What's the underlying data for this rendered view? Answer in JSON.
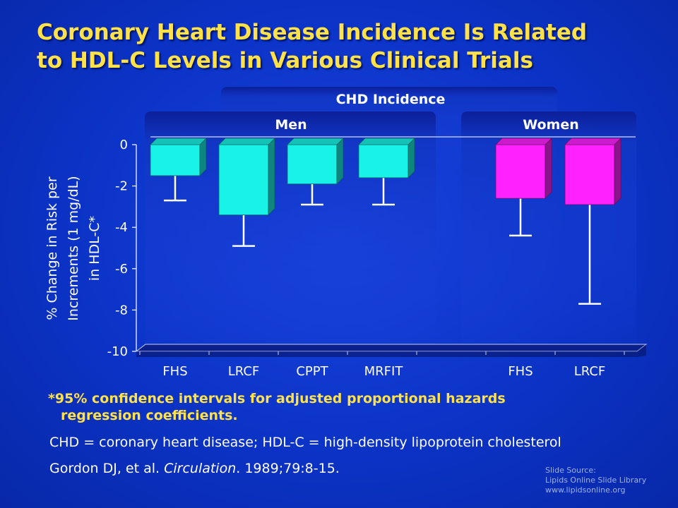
{
  "slide": {
    "title_line1": "Coronary Heart Disease Incidence Is Related",
    "title_line2": "to HDL-C Levels in Various Clinical Trials",
    "footnote_line1": "*95% confidence intervals for adjusted proportional hazards",
    "footnote_line2": "regression coefficients.",
    "abbreviations": "CHD = coronary heart disease; HDL-C = high-density lipoprotein cholesterol",
    "citation_authors": "Gordon DJ, et al. ",
    "citation_journal": "Circulation",
    "citation_rest": ". 1989;79:8-15.",
    "source_line1": "Slide Source:",
    "source_line2": "Lipids Online Slide Library",
    "source_line3": "www.lipidsonline.org"
  },
  "chart_data": {
    "type": "bar",
    "title": "CHD Incidence",
    "ylabel_lines": [
      "% Change in Risk per",
      "Increments (1 mg/dL)",
      "in HDL-C*"
    ],
    "ylim": [
      -10,
      0
    ],
    "yticks": [
      0,
      -2,
      -4,
      -6,
      -8,
      -10
    ],
    "groups": [
      {
        "name": "Men",
        "color": "#19f2e6",
        "categories": [
          "FHS",
          "LRCF",
          "CPPT",
          "MRFIT"
        ],
        "values": [
          -1.5,
          -3.4,
          -1.9,
          -1.6
        ],
        "ci_lower": [
          -2.7,
          -4.9,
          -2.9,
          -2.9
        ]
      },
      {
        "name": "Women",
        "color": "#ff22ff",
        "categories": [
          "FHS",
          "LRCF"
        ],
        "values": [
          -2.6,
          -2.9
        ],
        "ci_lower": [
          -4.4,
          -7.7
        ]
      }
    ],
    "grid": false,
    "legend": "none"
  }
}
